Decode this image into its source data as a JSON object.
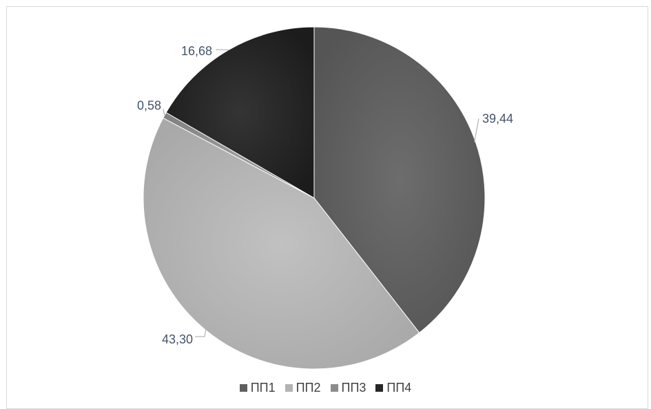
{
  "chart_data": {
    "type": "pie",
    "title": "",
    "categories": [
      "ПП1",
      "ПП2",
      "ПП3",
      "ПП4"
    ],
    "values": [
      39.44,
      43.3,
      0.58,
      16.68
    ],
    "value_labels": [
      "39,44",
      "43,30",
      "0,58",
      "16,68"
    ],
    "colors": [
      "#5f5f5f",
      "#b3b3b3",
      "#8c8c8c",
      "#262626"
    ],
    "legend_position": "bottom",
    "start_angle_deg": 0,
    "direction": "clockwise"
  }
}
